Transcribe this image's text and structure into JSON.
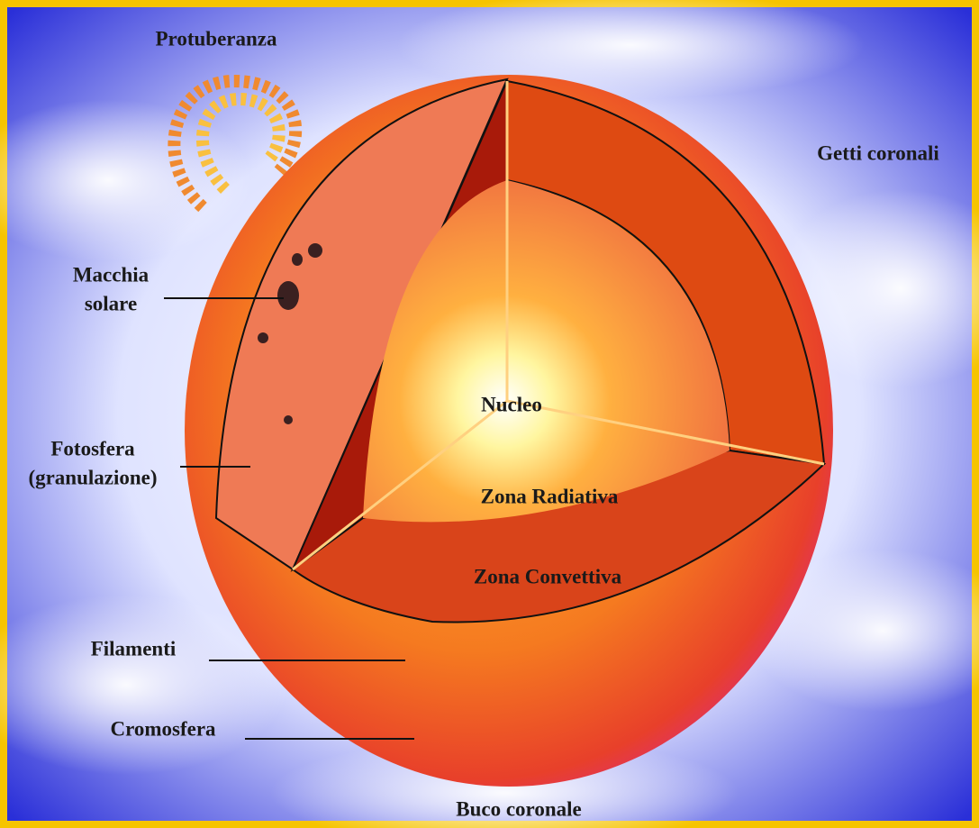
{
  "labels": [
    [
      "Protuberanza"
    ],
    [
      "Getti coronali"
    ],
    [
      "Macchia",
      "solare"
    ],
    [
      "Fotosfera",
      "(granulazione)"
    ],
    [
      "Nucleo"
    ],
    [
      "Zona Radiativa"
    ],
    [
      "Zona Convettiva"
    ],
    [
      "Filamenti"
    ],
    [
      "Cromosfera"
    ],
    [
      "Buco coronale"
    ]
  ]
}
